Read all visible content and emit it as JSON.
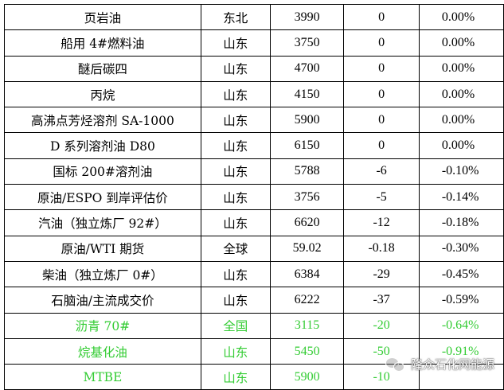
{
  "rows": [
    {
      "name": "页岩油",
      "region": "东北",
      "price": "3990",
      "change": "0",
      "pct": "0.00%",
      "highlight": false
    },
    {
      "name": "船用 4#燃料油",
      "region": "山东",
      "price": "3750",
      "change": "0",
      "pct": "0.00%",
      "highlight": false
    },
    {
      "name": "醚后碳四",
      "region": "山东",
      "price": "4700",
      "change": "0",
      "pct": "0.00%",
      "highlight": false
    },
    {
      "name": "丙烷",
      "region": "山东",
      "price": "4150",
      "change": "0",
      "pct": "0.00%",
      "highlight": false
    },
    {
      "name": "高沸点芳烃溶剂 SA-1000",
      "region": "山东",
      "price": "5900",
      "change": "0",
      "pct": "0.00%",
      "highlight": false
    },
    {
      "name": "D 系列溶剂油 D80",
      "region": "山东",
      "price": "6150",
      "change": "0",
      "pct": "0.00%",
      "highlight": false
    },
    {
      "name": "国标 200#溶剂油",
      "region": "山东",
      "price": "5788",
      "change": "-6",
      "pct": "-0.10%",
      "highlight": false
    },
    {
      "name": "原油/ESPO 到岸评估价",
      "region": "山东",
      "price": "3756",
      "change": "-5",
      "pct": "-0.14%",
      "highlight": false
    },
    {
      "name": "汽油（独立炼厂 92#）",
      "region": "山东",
      "price": "6620",
      "change": "-12",
      "pct": "-0.18%",
      "highlight": false
    },
    {
      "name": "原油/WTI 期货",
      "region": "全球",
      "price": "59.02",
      "change": "-0.18",
      "pct": "-0.30%",
      "highlight": false
    },
    {
      "name": "柴油（独立炼厂 0#）",
      "region": "山东",
      "price": "6384",
      "change": "-29",
      "pct": "-0.45%",
      "highlight": false
    },
    {
      "name": "石脑油/主流成交价",
      "region": "山东",
      "price": "6222",
      "change": "-37",
      "pct": "-0.59%",
      "highlight": false
    },
    {
      "name": "沥青 70#",
      "region": "全国",
      "price": "3115",
      "change": "-20",
      "pct": "-0.64%",
      "highlight": true
    },
    {
      "name": "烷基化油",
      "region": "山东",
      "price": "5450",
      "change": "-50",
      "pct": "-0.91%",
      "highlight": true
    },
    {
      "name": "MTBE",
      "region": "山东",
      "price": "5900",
      "change": "-10",
      "pct": "",
      "highlight": true
    }
  ],
  "colors": {
    "text": "#000000",
    "highlight": "#33cc33",
    "border": "#000000"
  },
  "watermark": {
    "icon": "wechat-icon",
    "text": "隆众石化网能源"
  }
}
